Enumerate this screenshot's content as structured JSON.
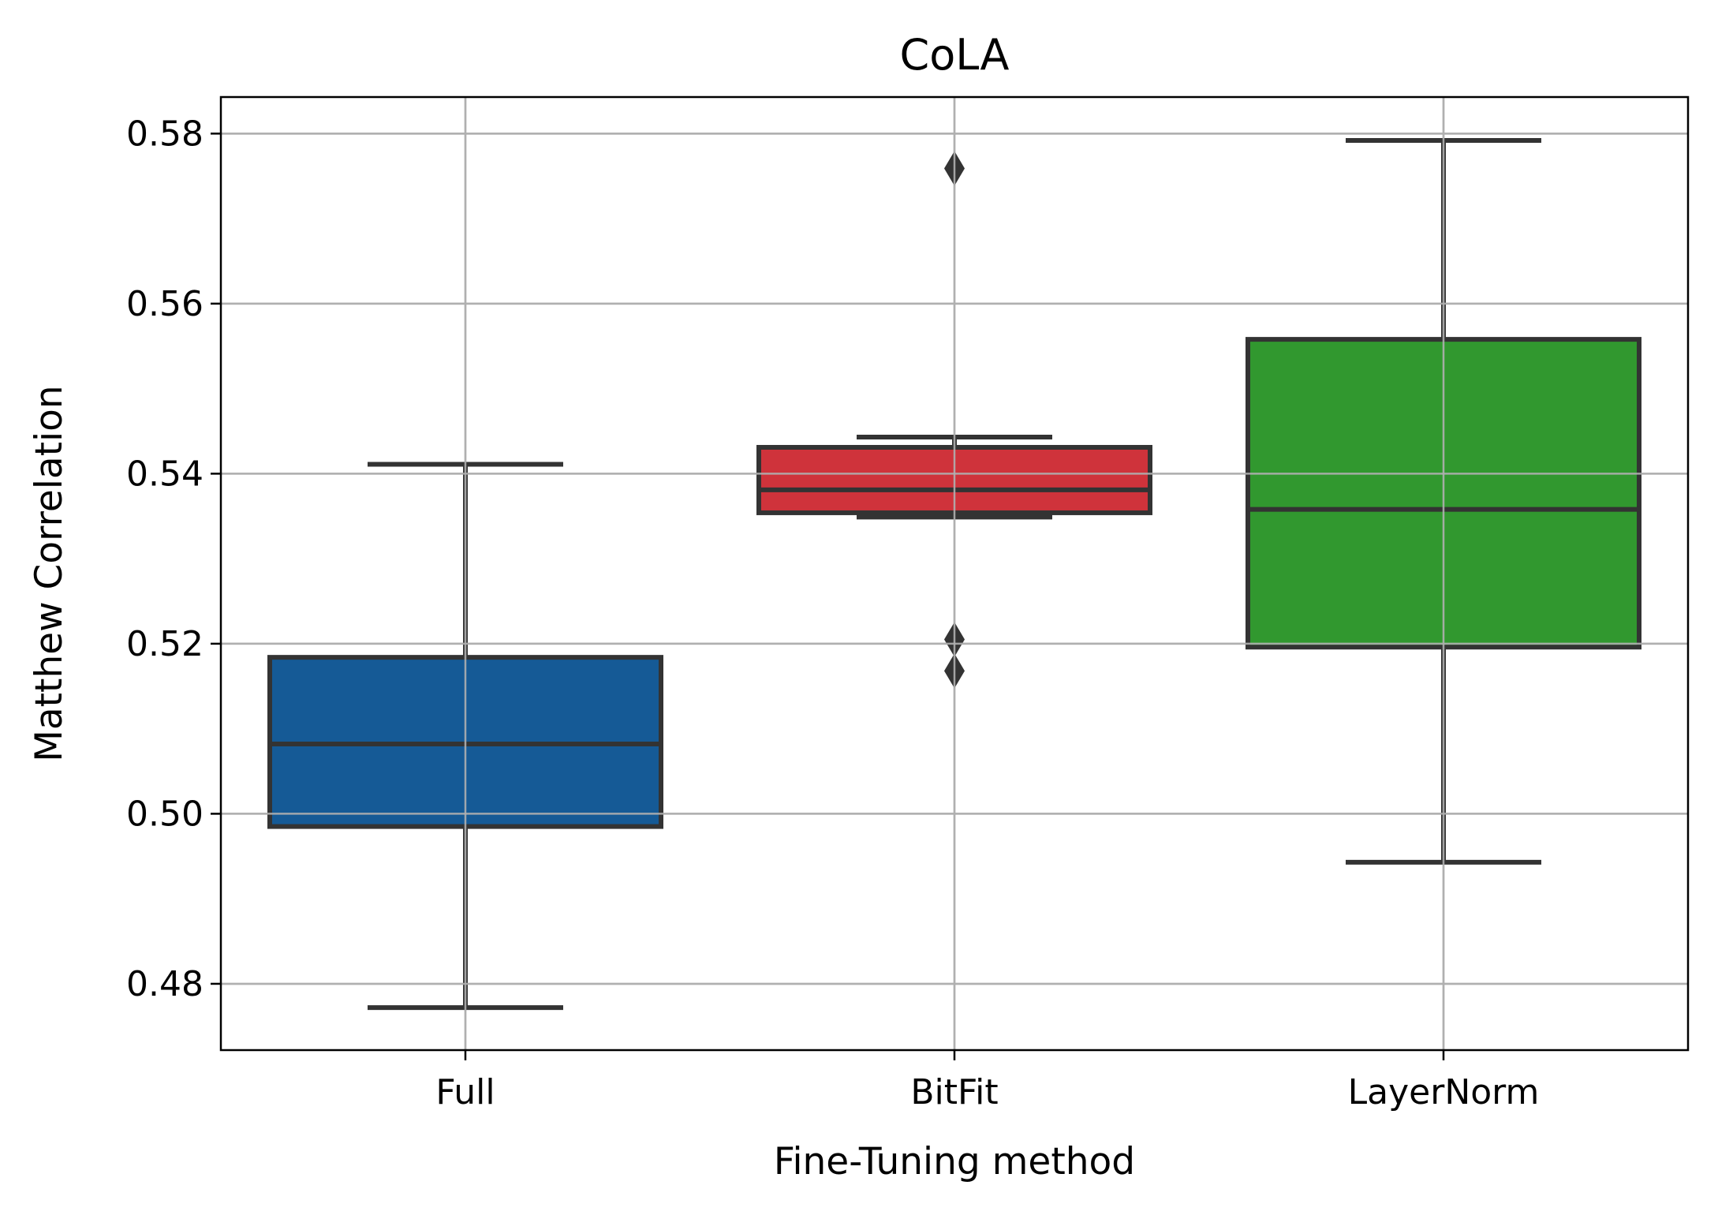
{
  "chart_data": {
    "type": "box",
    "title": "CoLA",
    "xlabel": "Fine-Tuning method",
    "ylabel": "Matthew Correlation",
    "ylim": [
      0.4722,
      0.5843
    ],
    "yticks": [
      0.48,
      0.5,
      0.52,
      0.54,
      0.56,
      0.58
    ],
    "ytick_labels": [
      "0.48",
      "0.50",
      "0.52",
      "0.54",
      "0.56",
      "0.58"
    ],
    "grid": true,
    "categories": [
      "Full",
      "BitFit",
      "LayerNorm"
    ],
    "boxes": [
      {
        "name": "Full",
        "whisker_low": 0.4772,
        "q1": 0.4985,
        "median": 0.5082,
        "q3": 0.5184,
        "whisker_high": 0.5411,
        "outliers": [],
        "color": "#155a96"
      },
      {
        "name": "BitFit",
        "whisker_low": 0.5349,
        "q1": 0.5354,
        "median": 0.5381,
        "q3": 0.5431,
        "whisker_high": 0.5443,
        "outliers": [
          0.5759,
          0.5205,
          0.5168
        ],
        "color": "#cf333b"
      },
      {
        "name": "LayerNorm",
        "whisker_low": 0.4943,
        "q1": 0.5196,
        "median": 0.5358,
        "q3": 0.5558,
        "whisker_high": 0.5792,
        "outliers": [],
        "color": "#31982f"
      }
    ],
    "colors": {
      "grid": "#b0b0b0",
      "edge": "#333333",
      "frame": "#000000"
    }
  }
}
